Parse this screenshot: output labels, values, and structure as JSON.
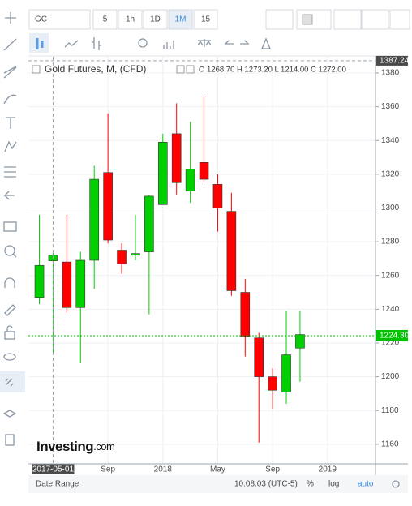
{
  "toolbar": {
    "symbol": "GC",
    "intervals": [
      "5",
      "1h",
      "1D",
      "1M",
      "15"
    ],
    "active_interval": 3
  },
  "chart_data": {
    "type": "candlestick",
    "legend_title": "Gold Futures, M, (CFD)",
    "ohlc_text": "O 1268.70  H 1273.20  L 1214.00  C 1272.00",
    "series": [
      {
        "name": "Gold Futures",
        "up_color": "#00d000",
        "down_color": "#ff0000",
        "open": [
          1247,
          1268.7,
          1268,
          1241,
          1269,
          1321,
          1275,
          1272,
          1274,
          1302,
          1344,
          1310,
          1327,
          1314,
          1298,
          1250,
          1223,
          1200,
          1191,
          1217
        ],
        "high": [
          1296,
          1273.2,
          1296,
          1274,
          1325,
          1356,
          1279,
          1296,
          1308,
          1344,
          1362,
          1351,
          1366,
          1320,
          1309,
          1258,
          1226,
          1205,
          1239,
          1239
        ],
        "low": [
          1243,
          1214,
          1238,
          1208,
          1252,
          1279,
          1261,
          1269,
          1237,
          1302,
          1308,
          1303,
          1315,
          1286,
          1248,
          1212,
          1161,
          1181,
          1184,
          1197
        ],
        "close": [
          1266,
          1272,
          1241,
          1269,
          1317,
          1281,
          1267,
          1273,
          1307,
          1339,
          1315,
          1323,
          1317,
          1300,
          1251,
          1224,
          1200,
          1192,
          1213,
          1225
        ]
      }
    ],
    "xlim": [
      -0.8,
      24.5
    ],
    "xticks": [
      {
        "value": 5,
        "label": "Sep"
      },
      {
        "value": 9,
        "label": "2018"
      },
      {
        "value": 13,
        "label": "May"
      },
      {
        "value": 17,
        "label": "Sep"
      },
      {
        "value": 21,
        "label": "2019"
      }
    ],
    "ylim": [
      1148.4,
      1389.6
    ],
    "yticks": [
      1160,
      1180,
      1200,
      1220,
      1240,
      1260,
      1280,
      1300,
      1320,
      1340,
      1360,
      1380
    ],
    "grid": true,
    "last_price": {
      "value": 1224.3,
      "label": "1224.30",
      "color": "#00c000"
    },
    "crosshair": {
      "x": 1,
      "x_label": "2017-05-01",
      "y": 1387.24
    },
    "watermark": {
      "brand": "Investing",
      "suffix": ".com"
    }
  },
  "footer": {
    "range": "Date Range",
    "time": "10:08:03 (UTC-5)",
    "percent": "%",
    "log": "log",
    "auto": "auto"
  }
}
